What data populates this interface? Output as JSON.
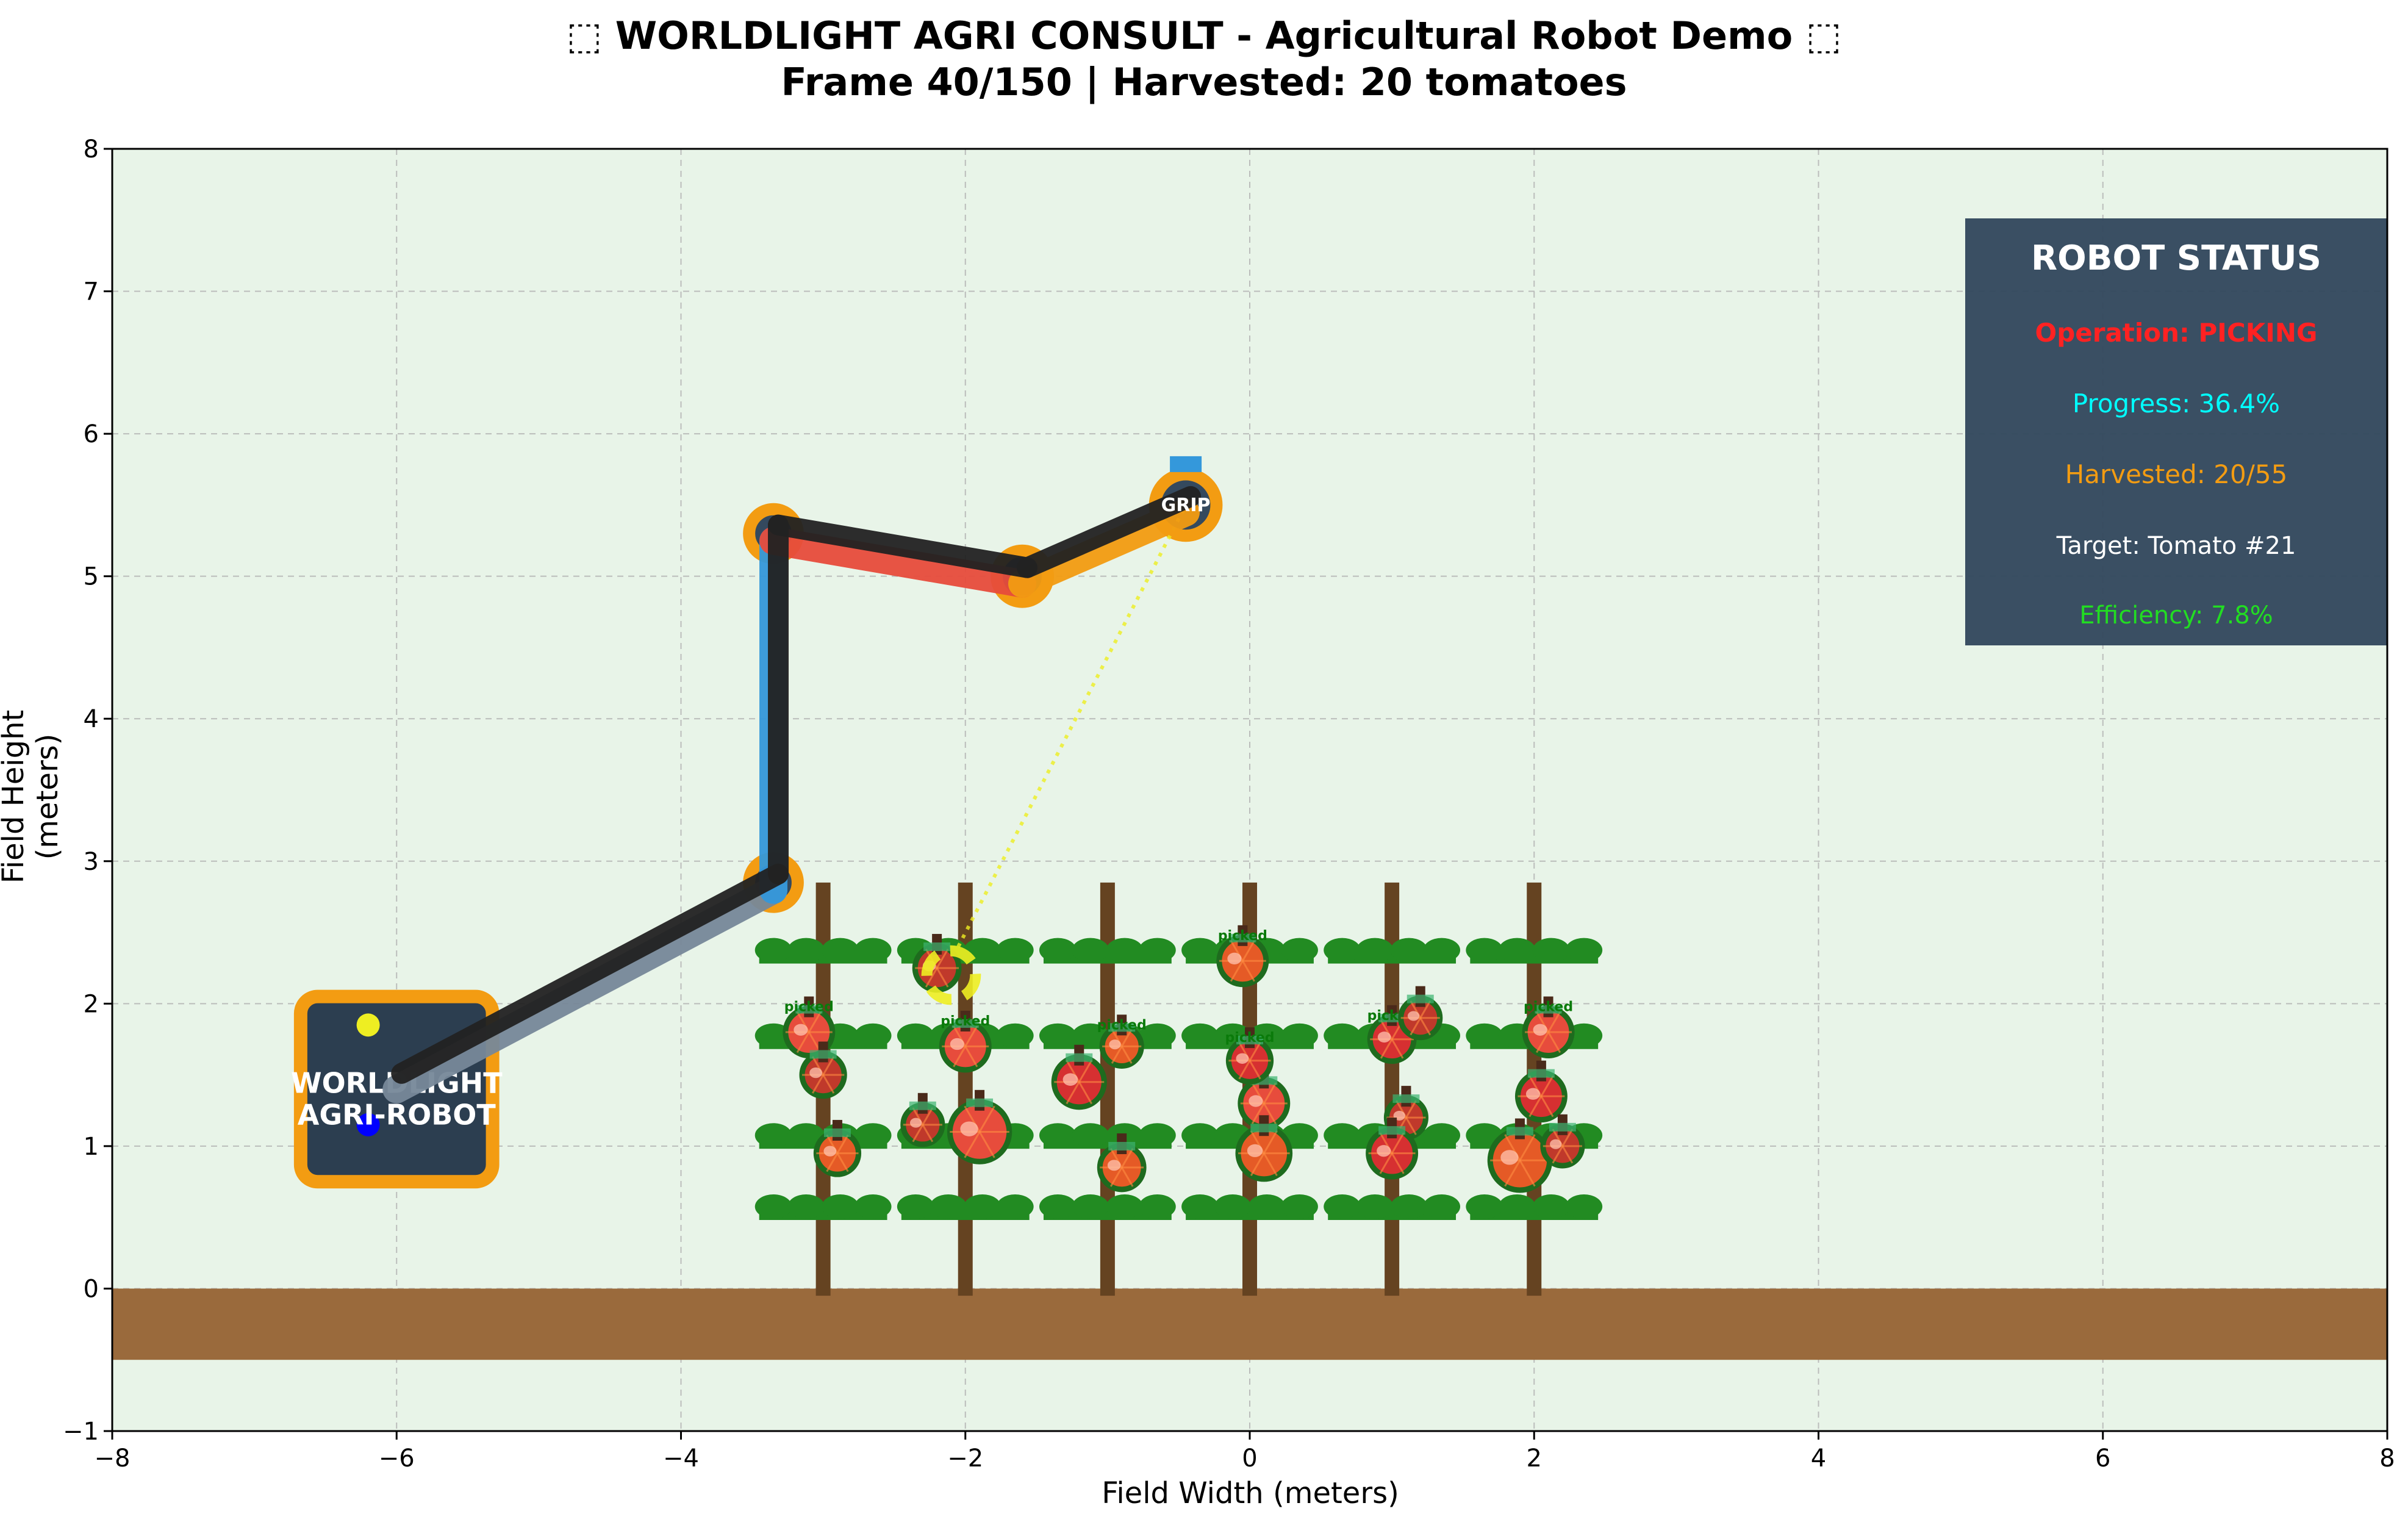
{
  "chart_data": {
    "type": "scatter",
    "title_line1": "⬚ WORLDLIGHT AGRI CONSULT - Agricultural Robot Demo ⬚",
    "title_line2": "Frame 40/150 | Harvested: 20 tomatoes",
    "xlabel": "Field Width (meters)",
    "ylabel": "Field Height (meters)",
    "xlim": [
      -8,
      8
    ],
    "ylim": [
      -1,
      8
    ],
    "xticks": [
      -8,
      -6,
      -4,
      -2,
      0,
      2,
      4,
      6,
      8
    ],
    "yticks": [
      -1,
      0,
      1,
      2,
      3,
      4,
      5,
      6,
      7,
      8
    ],
    "xtick_labels": [
      "−8",
      "−6",
      "−4",
      "−2",
      "0",
      "2",
      "4",
      "6",
      "8"
    ],
    "ytick_labels": [
      "−1",
      "0",
      "1",
      "2",
      "3",
      "4",
      "5",
      "6",
      "7",
      "8"
    ],
    "grid": true,
    "ground": {
      "y_top": 0,
      "y_bottom": -0.5,
      "color": "#9a6a3c"
    },
    "background_color": "#e8f4e8",
    "robot_base": {
      "center": [
        -6.0,
        1.4
      ],
      "label_line1": "WORLDLIGHT",
      "label_line2": "AGRI-ROBOT",
      "fill": "#2c3e50",
      "border": "#f39c12",
      "lights": [
        {
          "x": -6.2,
          "y": 1.85,
          "color": "#eeee22"
        },
        {
          "x": -6.2,
          "y": 1.15,
          "color": "#0000ff"
        }
      ]
    },
    "arm_joints": [
      {
        "x": -6.0,
        "y": 1.45
      },
      {
        "x": -3.35,
        "y": 2.85
      },
      {
        "x": -3.35,
        "y": 5.3
      },
      {
        "x": -1.6,
        "y": 5.0
      },
      {
        "x": -0.45,
        "y": 5.5
      }
    ],
    "arm_colors": {
      "segment1": "#778899",
      "segment2": "#3498db",
      "segment3": "#e74c3c",
      "segment4": "#f39c12",
      "outline": "#222222",
      "joint_fill": "#34495e",
      "joint_ring": "#f39c12"
    },
    "gripper_label": "GRIP",
    "target": {
      "x": -2.1,
      "y": 2.2,
      "color": "#eeee22"
    },
    "plants_x": [
      -3,
      -2,
      -1,
      0,
      1,
      2
    ],
    "leaf_rows_y": [
      0.55,
      1.05,
      1.75,
      2.35
    ],
    "stem_top_y": 2.85,
    "tomatoes": [
      {
        "x": -3.1,
        "y": 1.8,
        "r": 0.3,
        "color": "#e74c3c",
        "label": "picked"
      },
      {
        "x": -3.0,
        "y": 1.5,
        "r": 0.27,
        "color": "#c0392b"
      },
      {
        "x": -2.9,
        "y": 0.95,
        "r": 0.27,
        "color": "#e55a26"
      },
      {
        "x": -2.2,
        "y": 2.25,
        "r": 0.28,
        "color": "#c0392b"
      },
      {
        "x": -2.0,
        "y": 1.7,
        "r": 0.3,
        "color": "#e74c3c",
        "label": "picked"
      },
      {
        "x": -1.9,
        "y": 1.1,
        "r": 0.38,
        "color": "#e74c3c"
      },
      {
        "x": -2.3,
        "y": 1.15,
        "r": 0.25,
        "color": "#c0392b"
      },
      {
        "x": -1.2,
        "y": 1.45,
        "r": 0.32,
        "color": "#d63031"
      },
      {
        "x": -0.9,
        "y": 1.7,
        "r": 0.25,
        "color": "#e55a26",
        "label": "picked"
      },
      {
        "x": -0.9,
        "y": 0.85,
        "r": 0.28,
        "color": "#e55a26"
      },
      {
        "x": -0.05,
        "y": 2.3,
        "r": 0.3,
        "color": "#e55a26",
        "label": "picked"
      },
      {
        "x": 0.1,
        "y": 1.3,
        "r": 0.3,
        "color": "#e74c3c"
      },
      {
        "x": 0.1,
        "y": 0.95,
        "r": 0.33,
        "color": "#e55a26"
      },
      {
        "x": 0.0,
        "y": 1.6,
        "r": 0.27,
        "color": "#d63031",
        "label": "picked"
      },
      {
        "x": 1.0,
        "y": 1.75,
        "r": 0.28,
        "color": "#d63031",
        "label": "picked"
      },
      {
        "x": 1.1,
        "y": 1.2,
        "r": 0.25,
        "color": "#c0392b"
      },
      {
        "x": 1.0,
        "y": 0.95,
        "r": 0.3,
        "color": "#d63031"
      },
      {
        "x": 1.2,
        "y": 1.9,
        "r": 0.25,
        "color": "#c0392b"
      },
      {
        "x": 2.1,
        "y": 1.8,
        "r": 0.3,
        "color": "#e74c3c",
        "label": "picked"
      },
      {
        "x": 2.05,
        "y": 1.35,
        "r": 0.3,
        "color": "#d63031"
      },
      {
        "x": 1.9,
        "y": 0.9,
        "r": 0.38,
        "color": "#e55a26"
      },
      {
        "x": 2.2,
        "y": 1.0,
        "r": 0.25,
        "color": "#c0392b"
      }
    ]
  },
  "status_panel": {
    "title": "ROBOT STATUS",
    "operation": "Operation: PICKING",
    "progress": "Progress: 36.4%",
    "harvested": "Harvested: 20/55",
    "target": "Target: Tomato #21",
    "efficiency": "Efficiency: 7.8%",
    "colors": {
      "panel": "#34495e",
      "title": "#ffffff",
      "operation": "#ff2222",
      "progress": "#00ffff",
      "harvested": "#f39c12",
      "target": "#ffffff",
      "efficiency": "#22dd22"
    }
  }
}
